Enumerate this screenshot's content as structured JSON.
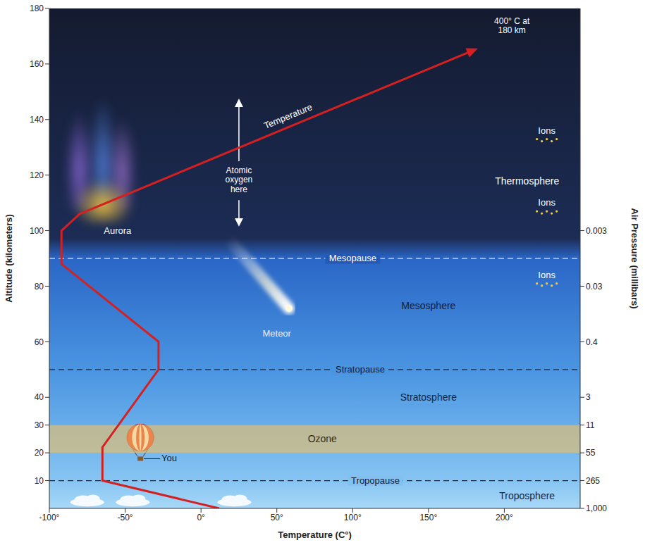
{
  "chart_data": {
    "type": "line",
    "x_label": "Temperature (C°)",
    "y_label": "Altitude (kilometers)",
    "y2_label": "Air Pressure (millibars)",
    "series": [
      {
        "name": "Temperature",
        "color": "#d42020",
        "x": [
          12,
          -65,
          -65,
          -28,
          -28,
          -92,
          -92,
          -80,
          180
        ],
        "values": [
          0,
          10,
          22,
          50,
          60,
          88,
          100,
          106,
          165
        ]
      }
    ],
    "xlim": [
      -100,
      250
    ],
    "xticks": [
      {
        "value": -100,
        "label": "-100°"
      },
      {
        "value": -50,
        "label": "-50°"
      },
      {
        "value": 0,
        "label": "0°"
      },
      {
        "value": 50,
        "label": "50°"
      },
      {
        "value": 100,
        "label": "100°"
      },
      {
        "value": 150,
        "label": "150°"
      },
      {
        "value": 200,
        "label": "200°"
      }
    ],
    "ylim": [
      0,
      180
    ],
    "yticks": [
      10,
      20,
      30,
      40,
      60,
      80,
      100,
      120,
      140,
      160,
      180
    ],
    "y2lim": [
      0,
      180
    ],
    "air_pressure": {
      "altitudes": [
        0,
        10,
        20,
        30,
        40,
        60,
        80,
        100
      ],
      "values": [
        1000,
        265,
        55,
        11,
        3,
        0.4,
        0.03,
        0.003
      ]
    },
    "grid": false,
    "layers": [
      "Troposphere",
      "Stratosphere",
      "Mesosphere",
      "Thermosphere"
    ],
    "boundaries": [
      {
        "name": "Tropopause",
        "altitude": 10
      },
      {
        "name": "Stratopause",
        "altitude": 50
      },
      {
        "name": "Mesopause",
        "altitude": 90
      }
    ],
    "ozone": {
      "label": "Ozone",
      "bottom": 20,
      "top": 30
    },
    "annotations": {
      "end_label": "400° C at 180 km",
      "aurora": "Aurora",
      "atomic_oxygen": "Atomic oxygen here",
      "meteor": "Meteor",
      "ions": [
        "Ions",
        "Ions",
        "Ions"
      ],
      "you": "You"
    }
  }
}
